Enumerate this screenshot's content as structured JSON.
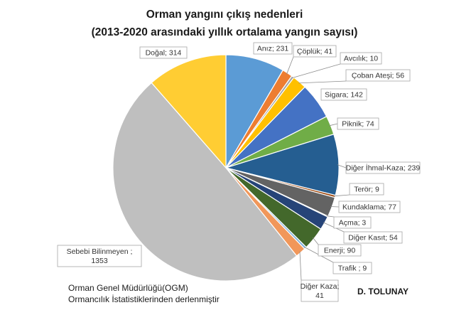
{
  "chart_data": {
    "type": "pie",
    "title": "Orman yangını çıkış nedenleri",
    "subtitle": "(2013-2020 arasındaki yıllık ortalama yangın sayısı)",
    "legend": "none",
    "slices": [
      {
        "label": "Anız; 231",
        "value": 231,
        "color": "#5b9bd5"
      },
      {
        "label": "Çöplük; 41",
        "value": 41,
        "color": "#ed7d31"
      },
      {
        "label": "Avcılık; 10",
        "value": 10,
        "color": "#a5a5a5"
      },
      {
        "label": "Çoban Ateşi; 56",
        "value": 56,
        "color": "#ffc000"
      },
      {
        "label": "Sigara; 142",
        "value": 142,
        "color": "#4472c4"
      },
      {
        "label": "Piknik; 74",
        "value": 74,
        "color": "#70ad47"
      },
      {
        "label": "Diğer İhmal-Kaza; 239",
        "value": 239,
        "color": "#255e91"
      },
      {
        "label": "Terör; 9",
        "value": 9,
        "color": "#9e480e"
      },
      {
        "label": "Kundaklama; 77",
        "value": 77,
        "color": "#636363"
      },
      {
        "label": "Açma; 3",
        "value": 3,
        "color": "#997300"
      },
      {
        "label": "Diğer Kasıt; 54",
        "value": 54,
        "color": "#264478"
      },
      {
        "label": "Enerji; 90",
        "value": 90,
        "color": "#43682b"
      },
      {
        "label": "Trafik ; 9",
        "value": 9,
        "color": "#7cafdd"
      },
      {
        "label": "Diğer Kaza; 41",
        "value": 41,
        "color": "#f1975a"
      },
      {
        "label": "Sebebi Bilinmeyen ; 1353",
        "value": 1353,
        "color": "#bfbfbf"
      },
      {
        "label": "Doğal; 314",
        "value": 314,
        "color": "#ffcd33"
      }
    ]
  },
  "notes": {
    "source_line1": "Orman Genel Müdürlüğü(OGM)",
    "source_line2": "Ormancılık İstatistiklerinden derlenmiştir",
    "author": "D. TOLUNAY"
  }
}
